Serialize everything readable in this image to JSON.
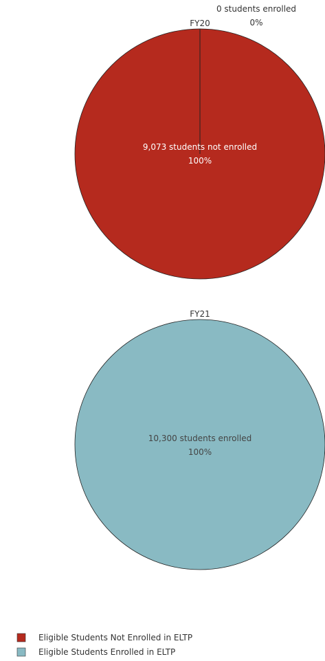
{
  "chart_data": [
    {
      "type": "pie",
      "title": "FY20",
      "slices": [
        {
          "series": "Eligible Students Not Enrolled in ELTP",
          "value": 9073,
          "count_label": "9,073 students not enrolled",
          "pct_label": "100%",
          "color": "#b52a1e"
        },
        {
          "series": "Eligible Students Enrolled in ELTP",
          "value": 0,
          "count_label": "0 students enrolled",
          "pct_label": "0%",
          "color": "#89bac3"
        }
      ]
    },
    {
      "type": "pie",
      "title": "FY21",
      "slices": [
        {
          "series": "Eligible Students Enrolled in ELTP",
          "value": 10300,
          "count_label": "10,300 students enrolled",
          "pct_label": "100%",
          "color": "#89bac3"
        }
      ]
    }
  ],
  "legend": {
    "items": [
      {
        "label": "Eligible Students Not Enrolled in ELTP",
        "color": "#b52a1e"
      },
      {
        "label": "Eligible Students Enrolled in ELTP",
        "color": "#89bac3"
      }
    ]
  }
}
